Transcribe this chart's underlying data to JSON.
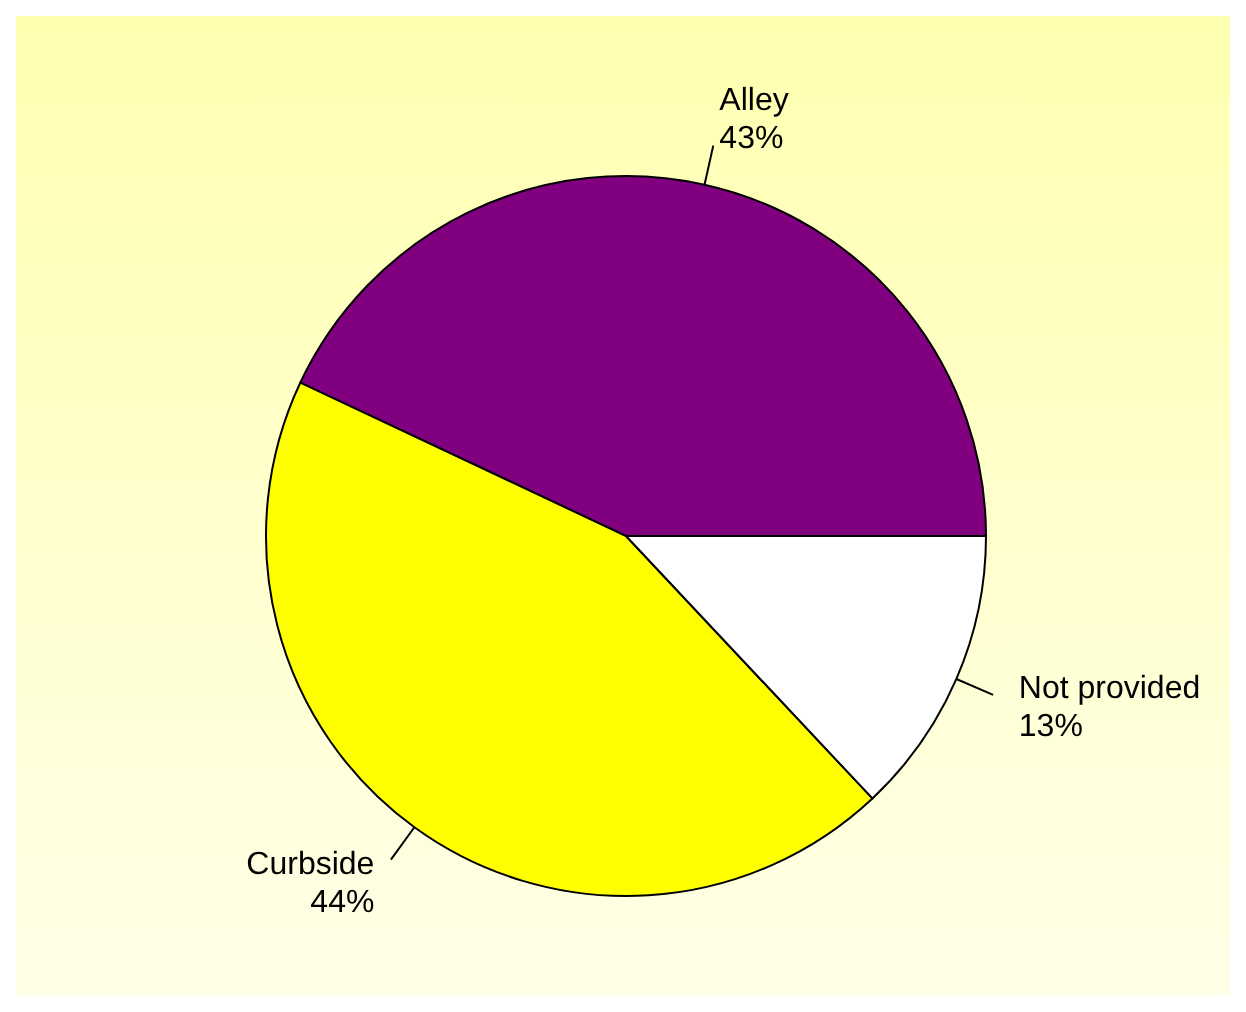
{
  "chart_data": {
    "type": "pie",
    "categories": [
      "Alley",
      "Curbside",
      "Not provided"
    ],
    "values": [
      43,
      44,
      13
    ],
    "colors": [
      "#800080",
      "#ffff00",
      "#ffffff"
    ],
    "value_labels": [
      "43%",
      "44%",
      "13%"
    ],
    "legend": false
  }
}
